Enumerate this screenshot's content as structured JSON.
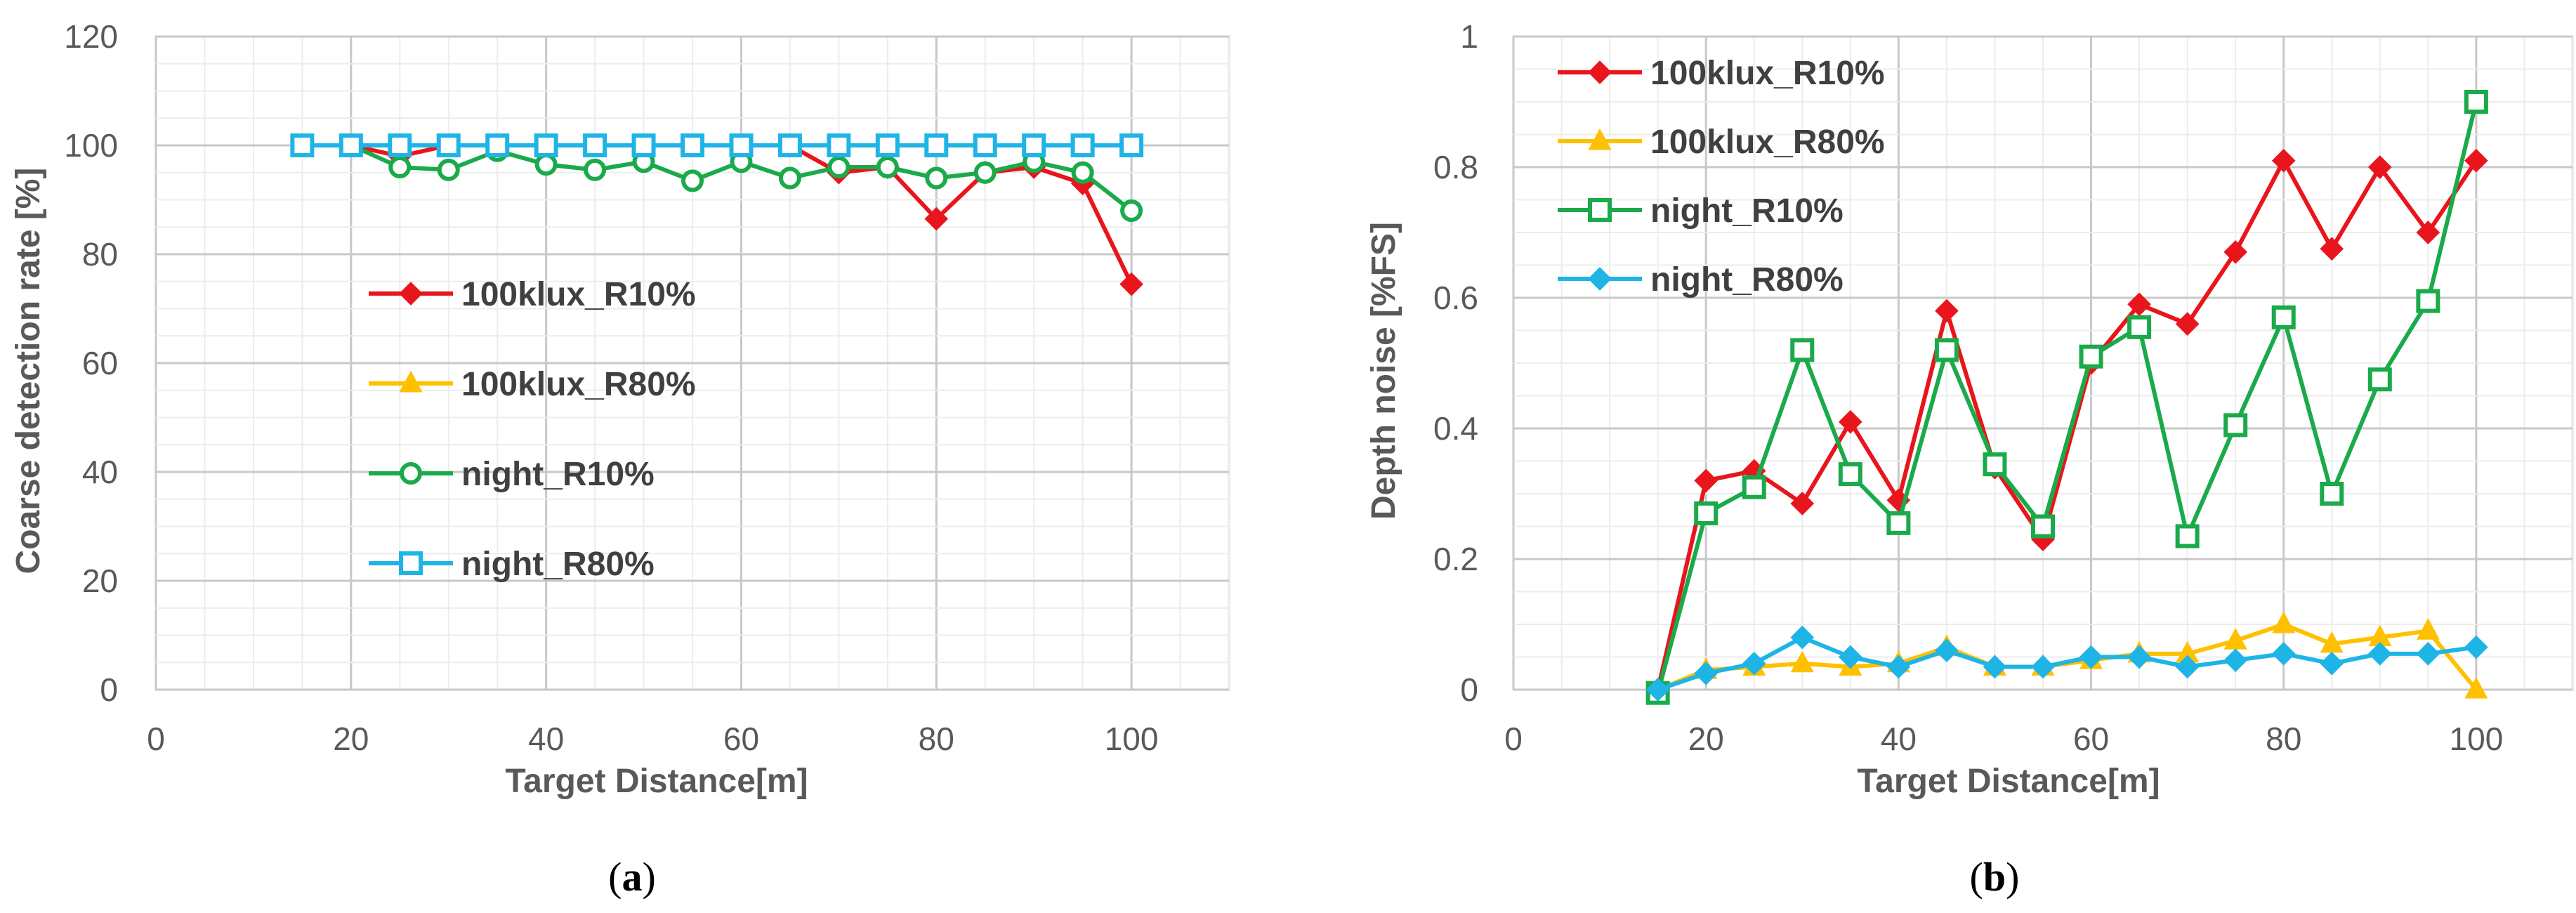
{
  "colors": {
    "100klux_R10%": "#e8161c",
    "100klux_R80%": "#ffc000",
    "night_R10%": "#1aaa4a",
    "night_R80%": "#1fb4e6",
    "grid": "#d9d9d9",
    "plot_border": "#d9d9d9"
  },
  "chart_data": [
    {
      "type": "line",
      "panel": "a",
      "xlabel": "Target Distance[m]",
      "ylabel": "Coarse detection rate [%]",
      "xlim": [
        0,
        110
      ],
      "ylim": [
        0,
        120
      ],
      "x_ticks": [
        0,
        20,
        40,
        60,
        80,
        100
      ],
      "y_ticks": [
        0,
        20,
        40,
        60,
        80,
        100,
        120
      ],
      "grid": true,
      "legend_position": "center-left",
      "x": [
        15,
        20,
        25,
        30,
        35,
        40,
        45,
        50,
        55,
        60,
        65,
        70,
        75,
        80,
        85,
        90,
        95,
        100
      ],
      "series": [
        {
          "name": "100klux_R10%",
          "marker": "diamond",
          "values": [
            100,
            100,
            98,
            100,
            100,
            100,
            100,
            100,
            100,
            100,
            100,
            95,
            96,
            86.5,
            95,
            96,
            93,
            74.5
          ]
        },
        {
          "name": "100klux_R80%",
          "marker": "triangle",
          "values": [
            100,
            100,
            100,
            100,
            100,
            100,
            100,
            100,
            100,
            100,
            100,
            100,
            100,
            100,
            100,
            100,
            100,
            100
          ]
        },
        {
          "name": "night_R10%",
          "marker": "circle",
          "values": [
            100,
            100,
            96,
            95.5,
            99,
            96.5,
            95.5,
            97,
            93.5,
            97,
            94,
            96,
            96,
            94,
            95,
            97,
            95,
            88
          ]
        },
        {
          "name": "night_R80%",
          "marker": "square",
          "values": [
            100,
            100,
            100,
            100,
            100,
            100,
            100,
            100,
            100,
            100,
            100,
            100,
            100,
            100,
            100,
            100,
            100,
            100
          ]
        }
      ]
    },
    {
      "type": "line",
      "panel": "b",
      "xlabel": "Target Distance[m]",
      "ylabel": "Depth noise [%FS]",
      "xlim": [
        0,
        110
      ],
      "ylim": [
        0,
        1
      ],
      "x_ticks": [
        0,
        20,
        40,
        60,
        80,
        100
      ],
      "y_ticks": [
        0,
        0.2,
        0.4,
        0.6,
        0.8,
        1
      ],
      "grid": true,
      "legend_position": "top-left",
      "x": [
        15,
        20,
        25,
        30,
        35,
        40,
        45,
        50,
        55,
        60,
        65,
        70,
        75,
        80,
        85,
        90,
        95,
        100
      ],
      "series": [
        {
          "name": "100klux_R10%",
          "marker": "diamond",
          "values": [
            0,
            0.32,
            0.335,
            0.285,
            0.41,
            0.29,
            0.58,
            0.34,
            0.23,
            0.5,
            0.59,
            0.56,
            0.67,
            0.81,
            0.675,
            0.8,
            0.7,
            0.81
          ]
        },
        {
          "name": "100klux_R80%",
          "marker": "triangle",
          "values": [
            0,
            0.03,
            0.035,
            0.04,
            0.035,
            0.04,
            0.065,
            0.035,
            0.035,
            0.045,
            0.055,
            0.055,
            0.075,
            0.1,
            0.07,
            0.08,
            0.09,
            0
          ]
        },
        {
          "name": "night_R10%",
          "marker": "square",
          "values": [
            -0.005,
            0.27,
            0.31,
            0.52,
            0.33,
            0.255,
            0.52,
            0.345,
            0.25,
            0.51,
            0.555,
            0.235,
            0.405,
            0.57,
            0.3,
            0.475,
            0.595,
            0.9
          ]
        },
        {
          "name": "night_R80%",
          "marker": "diamond",
          "values": [
            0,
            0.025,
            0.04,
            0.08,
            0.05,
            0.035,
            0.06,
            0.035,
            0.035,
            0.05,
            0.05,
            0.035,
            0.045,
            0.055,
            0.04,
            0.055,
            0.055,
            0.065
          ]
        }
      ]
    }
  ],
  "captions": [
    {
      "open": "(",
      "letter": "a",
      "close": ")"
    },
    {
      "open": "(",
      "letter": "b",
      "close": ")"
    }
  ]
}
